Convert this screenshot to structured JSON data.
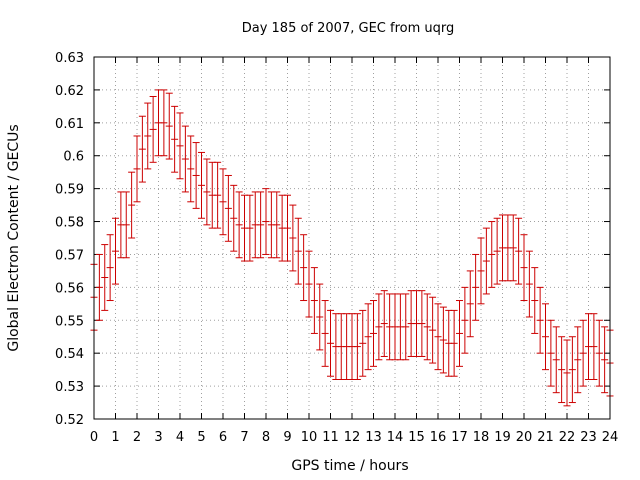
{
  "chart_data": {
    "type": "line",
    "title": "Day 185 of 2007, GEC from uqrg",
    "xlabel": "GPS time / hours",
    "ylabel": "Global Electron Content / GECUs",
    "xlim": [
      0,
      24
    ],
    "ylim": [
      0.52,
      0.63
    ],
    "grid": true,
    "x_ticks": [
      "0",
      "1",
      "2",
      "3",
      "4",
      "5",
      "6",
      "7",
      "8",
      "9",
      "10",
      "11",
      "12",
      "13",
      "14",
      "15",
      "16",
      "17",
      "18",
      "19",
      "20",
      "21",
      "22",
      "23",
      "24"
    ],
    "y_ticks": [
      "0.52",
      "0.53",
      "0.54",
      "0.55",
      "0.56",
      "0.57",
      "0.58",
      "0.59",
      "0.6",
      "0.61",
      "0.62",
      "0.63"
    ],
    "error": 0.01,
    "color": "#cc0000",
    "series": [
      {
        "x": [
          0,
          0.25,
          0.5,
          0.75,
          1,
          1.25,
          1.5,
          1.75,
          2,
          2.25,
          2.5,
          2.75,
          3,
          3.25,
          3.5,
          3.75,
          4,
          4.25,
          4.5,
          4.75,
          5,
          5.25,
          5.5,
          5.75,
          6,
          6.25,
          6.5,
          6.75,
          7,
          7.25,
          7.5,
          7.75,
          8,
          8.25,
          8.5,
          8.75,
          9,
          9.25,
          9.5,
          9.75,
          10,
          10.25,
          10.5,
          10.75,
          11,
          11.25,
          11.5,
          11.75,
          12,
          12.25,
          12.5,
          12.75,
          13,
          13.25,
          13.5,
          13.75,
          14,
          14.25,
          14.5,
          14.75,
          15,
          15.25,
          15.5,
          15.75,
          16,
          16.25,
          16.5,
          16.75,
          17,
          17.25,
          17.5,
          17.75,
          18,
          18.25,
          18.5,
          18.75,
          19,
          19.25,
          19.5,
          19.75,
          20,
          20.25,
          20.5,
          20.75,
          21,
          21.25,
          21.5,
          21.75,
          22,
          22.25,
          22.5,
          22.75,
          23,
          23.25,
          23.5,
          23.75,
          24
        ],
        "y": [
          0.557,
          0.56,
          0.563,
          0.566,
          0.571,
          0.579,
          0.579,
          0.585,
          0.596,
          0.602,
          0.606,
          0.608,
          0.61,
          0.61,
          0.609,
          0.605,
          0.603,
          0.599,
          0.596,
          0.594,
          0.591,
          0.589,
          0.588,
          0.588,
          0.586,
          0.584,
          0.581,
          0.579,
          0.578,
          0.578,
          0.579,
          0.579,
          0.58,
          0.579,
          0.579,
          0.578,
          0.578,
          0.575,
          0.571,
          0.566,
          0.561,
          0.556,
          0.551,
          0.546,
          0.543,
          0.542,
          0.542,
          0.542,
          0.542,
          0.542,
          0.543,
          0.545,
          0.546,
          0.548,
          0.549,
          0.548,
          0.548,
          0.548,
          0.548,
          0.549,
          0.549,
          0.549,
          0.548,
          0.547,
          0.545,
          0.544,
          0.543,
          0.543,
          0.546,
          0.55,
          0.555,
          0.56,
          0.565,
          0.568,
          0.57,
          0.571,
          0.572,
          0.572,
          0.572,
          0.571,
          0.566,
          0.561,
          0.556,
          0.55,
          0.545,
          0.54,
          0.538,
          0.535,
          0.534,
          0.535,
          0.538,
          0.54,
          0.542,
          0.542,
          0.54,
          0.538,
          0.537
        ]
      }
    ]
  }
}
